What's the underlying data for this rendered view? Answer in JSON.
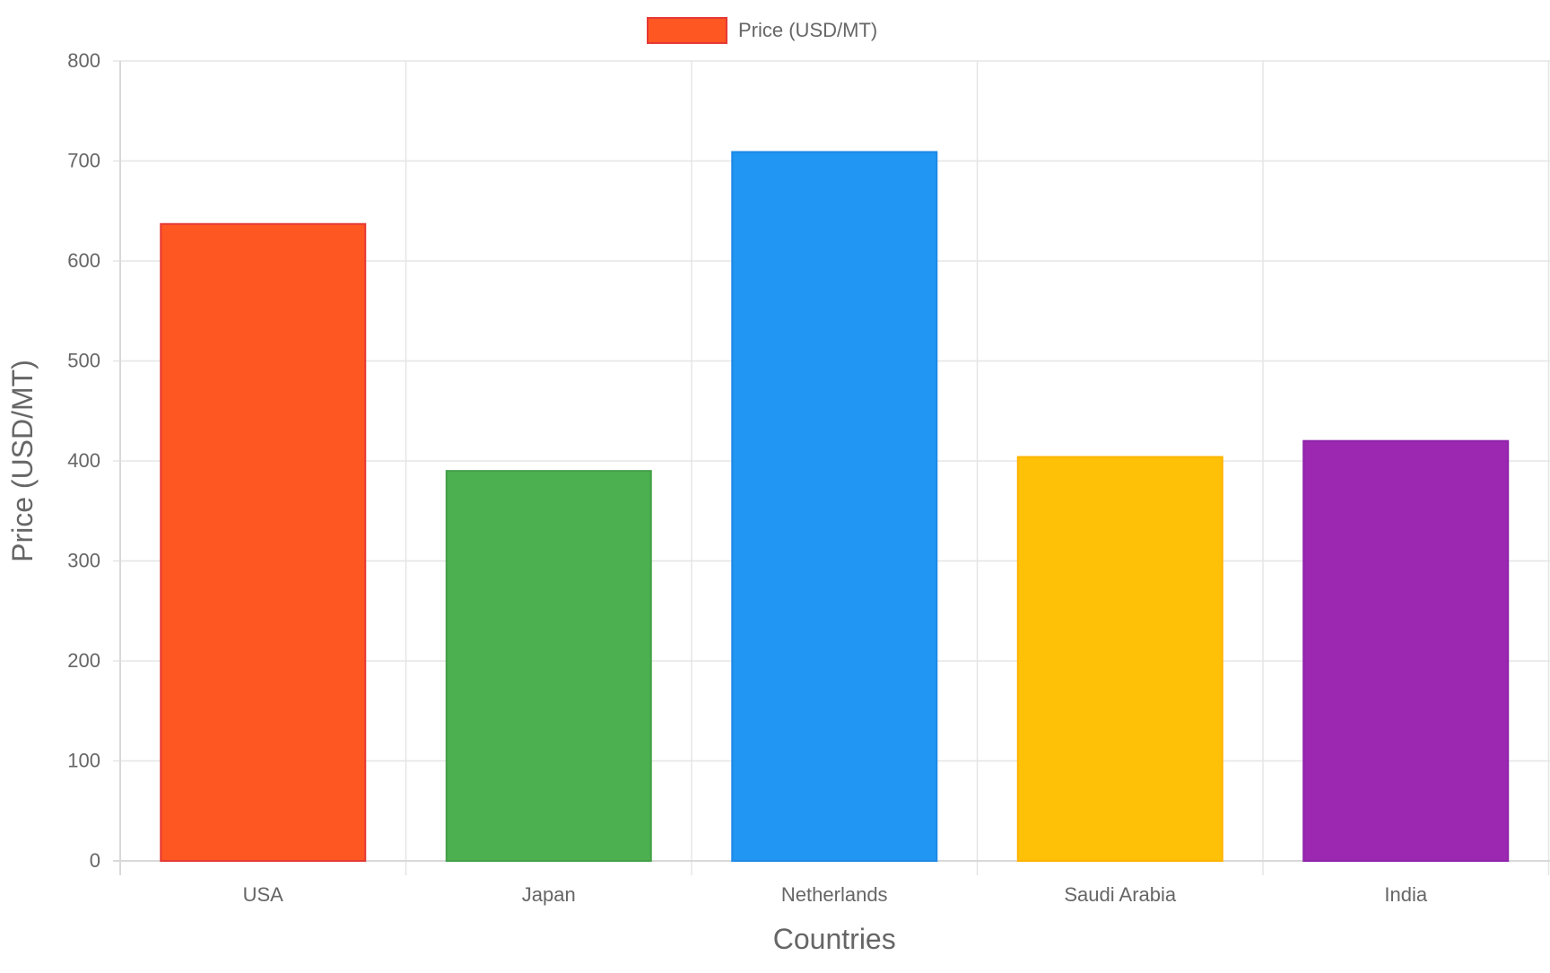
{
  "chart_data": {
    "type": "bar",
    "categories": [
      "USA",
      "Japan",
      "Netherlands",
      "Saudi Arabia",
      "India"
    ],
    "series": [
      {
        "name": "Price (USD/MT)",
        "values": [
          637,
          390,
          709,
          404,
          420
        ],
        "colors": [
          "#FF5722",
          "#4CAF50",
          "#2196F3",
          "#FFC107",
          "#9C27B0"
        ],
        "border_colors": [
          "#E53935",
          "#43A047",
          "#1E88E5",
          "#FFB300",
          "#8E24AA"
        ]
      }
    ],
    "xlabel": "Countries",
    "ylabel": "Price (USD/MT)",
    "ylim": [
      0,
      800
    ],
    "yticks": [
      0,
      100,
      200,
      300,
      400,
      500,
      600,
      700,
      800
    ],
    "grid": true,
    "legend": {
      "position": "top-center",
      "label": "Price (USD/MT)",
      "color": "#FF5722",
      "border_color": "#E53935"
    },
    "gridColor": "#E5E5E5",
    "textColor": "#666666"
  }
}
